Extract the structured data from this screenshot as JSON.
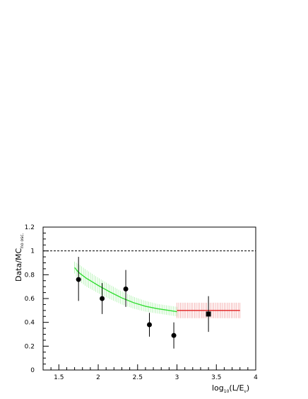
{
  "chart_data": {
    "type": "scatter",
    "title": "",
    "xlabel": {
      "main": "log",
      "sub1": "10",
      "mid": "(L/E",
      "sub2": "ν",
      "end": ")"
    },
    "ylabel": {
      "main": "Data/MC",
      "sub": "no osc."
    },
    "xlim": [
      1.3,
      4.0
    ],
    "ylim": [
      0,
      1.2
    ],
    "xticks": [
      "1.5",
      "2",
      "2.5",
      "3",
      "3.5",
      "4"
    ],
    "xtick_values": [
      1.5,
      2.0,
      2.5,
      3.0,
      3.5,
      4.0
    ],
    "yticks": [
      "0",
      "0.2",
      "0.4",
      "0.6",
      "0.8",
      "1",
      "1.2"
    ],
    "ytick_values": [
      0,
      0.2,
      0.4,
      0.6,
      0.8,
      1.0,
      1.2
    ],
    "reference_line": {
      "y": 1.0,
      "style": "dashed"
    },
    "series": [
      {
        "marker": "circle",
        "x": [
          1.75,
          2.05,
          2.35,
          2.65,
          2.96
        ],
        "y": [
          0.76,
          0.6,
          0.68,
          0.38,
          0.29
        ],
        "yerr_low": [
          0.18,
          0.13,
          0.15,
          0.1,
          0.11
        ],
        "yerr_high": [
          0.19,
          0.13,
          0.16,
          0.1,
          0.11
        ]
      },
      {
        "marker": "square",
        "x": [
          3.4
        ],
        "y": [
          0.47
        ],
        "yerr_low": [
          0.15
        ],
        "yerr_high": [
          0.15
        ]
      }
    ],
    "bands": [
      {
        "color": "#33dd33",
        "x": [
          1.7,
          1.75,
          1.85,
          2.0,
          2.15,
          2.3,
          2.45,
          2.6,
          2.75,
          2.9,
          3.0
        ],
        "y": [
          0.86,
          0.82,
          0.77,
          0.71,
          0.655,
          0.605,
          0.565,
          0.535,
          0.515,
          0.5,
          0.49
        ],
        "halfwidth": [
          0.05,
          0.07,
          0.07,
          0.065,
          0.06,
          0.055,
          0.05,
          0.045,
          0.04,
          0.04,
          0.04
        ]
      },
      {
        "color": "#e02020",
        "x": [
          3.0,
          3.8
        ],
        "y": [
          0.5,
          0.5
        ],
        "halfwidth": [
          0.065,
          0.065
        ]
      }
    ]
  }
}
